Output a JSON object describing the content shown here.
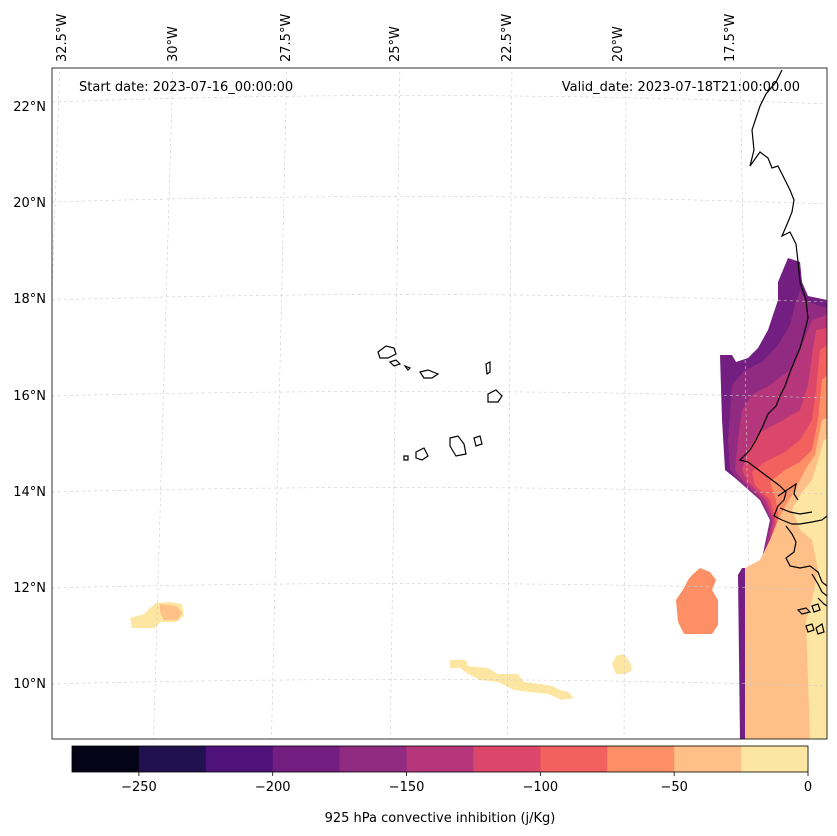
{
  "header": {
    "start_label": "Start date: 2023-07-16_00:00:00",
    "valid_label": "Valid_date: 2023-07-18T21:00:00.00"
  },
  "lon_labels": [
    {
      "text": "32.5°W",
      "lon": -32.5
    },
    {
      "text": "30°W",
      "lon": -30.0
    },
    {
      "text": "27.5°W",
      "lon": -27.5
    },
    {
      "text": "25°W",
      "lon": -25.0
    },
    {
      "text": "22.5°W",
      "lon": -22.5
    },
    {
      "text": "20°W",
      "lon": -20.0
    },
    {
      "text": "17.5°W",
      "lon": -17.5
    }
  ],
  "lat_labels": [
    {
      "text": "22°N",
      "lat": 22
    },
    {
      "text": "20°N",
      "lat": 20
    },
    {
      "text": "18°N",
      "lat": 18
    },
    {
      "text": "16°N",
      "lat": 16
    },
    {
      "text": "14°N",
      "lat": 14
    },
    {
      "text": "12°N",
      "lat": 12
    },
    {
      "text": "10°N",
      "lat": 10
    }
  ],
  "colorbar": {
    "label": "925 hPa convective inhibition (j/Kg)",
    "min": -275,
    "max": 0,
    "colors": [
      "#050417",
      "#221150",
      "#4f127b",
      "#731f81",
      "#912b81",
      "#b5367a",
      "#db476a",
      "#f2615d",
      "#fc8f65",
      "#fec087",
      "#fde5a2"
    ],
    "ticks": [
      {
        "text": "−250",
        "value": -250
      },
      {
        "text": "−200",
        "value": -200
      },
      {
        "text": "−150",
        "value": -150
      },
      {
        "text": "−100",
        "value": -100
      },
      {
        "text": "−50",
        "value": -50
      },
      {
        "text": "0",
        "value": 0
      }
    ]
  },
  "cin_regions": [
    {
      "name": "senegal-coast-fill-outer",
      "color": "#731f81"
    },
    {
      "name": "senegal-coast-fill-b1",
      "color": "#912b81"
    },
    {
      "name": "senegal-coast-fill-b2",
      "color": "#b5367a"
    },
    {
      "name": "senegal-coast-fill-b3",
      "color": "#db476a"
    },
    {
      "name": "senegal-coast-fill-b4",
      "color": "#f2615d"
    },
    {
      "name": "senegal-coast-fill-b5",
      "color": "#fc8f65"
    },
    {
      "name": "senegal-coast-fill-b6",
      "color": "#fec087"
    },
    {
      "name": "senegal-coast-fill-b7",
      "color": "#fde5a2"
    },
    {
      "name": "offshore-patch-11n-18w",
      "color": "#fc8f65"
    },
    {
      "name": "patch-11n-31w",
      "color": "#fde5a2"
    },
    {
      "name": "patch-11n-31w-core",
      "color": "#fec087"
    },
    {
      "name": "streak-10n-22w",
      "color": "#fde5a2"
    },
    {
      "name": "patch-10n-20w",
      "color": "#fde5a2"
    }
  ]
}
